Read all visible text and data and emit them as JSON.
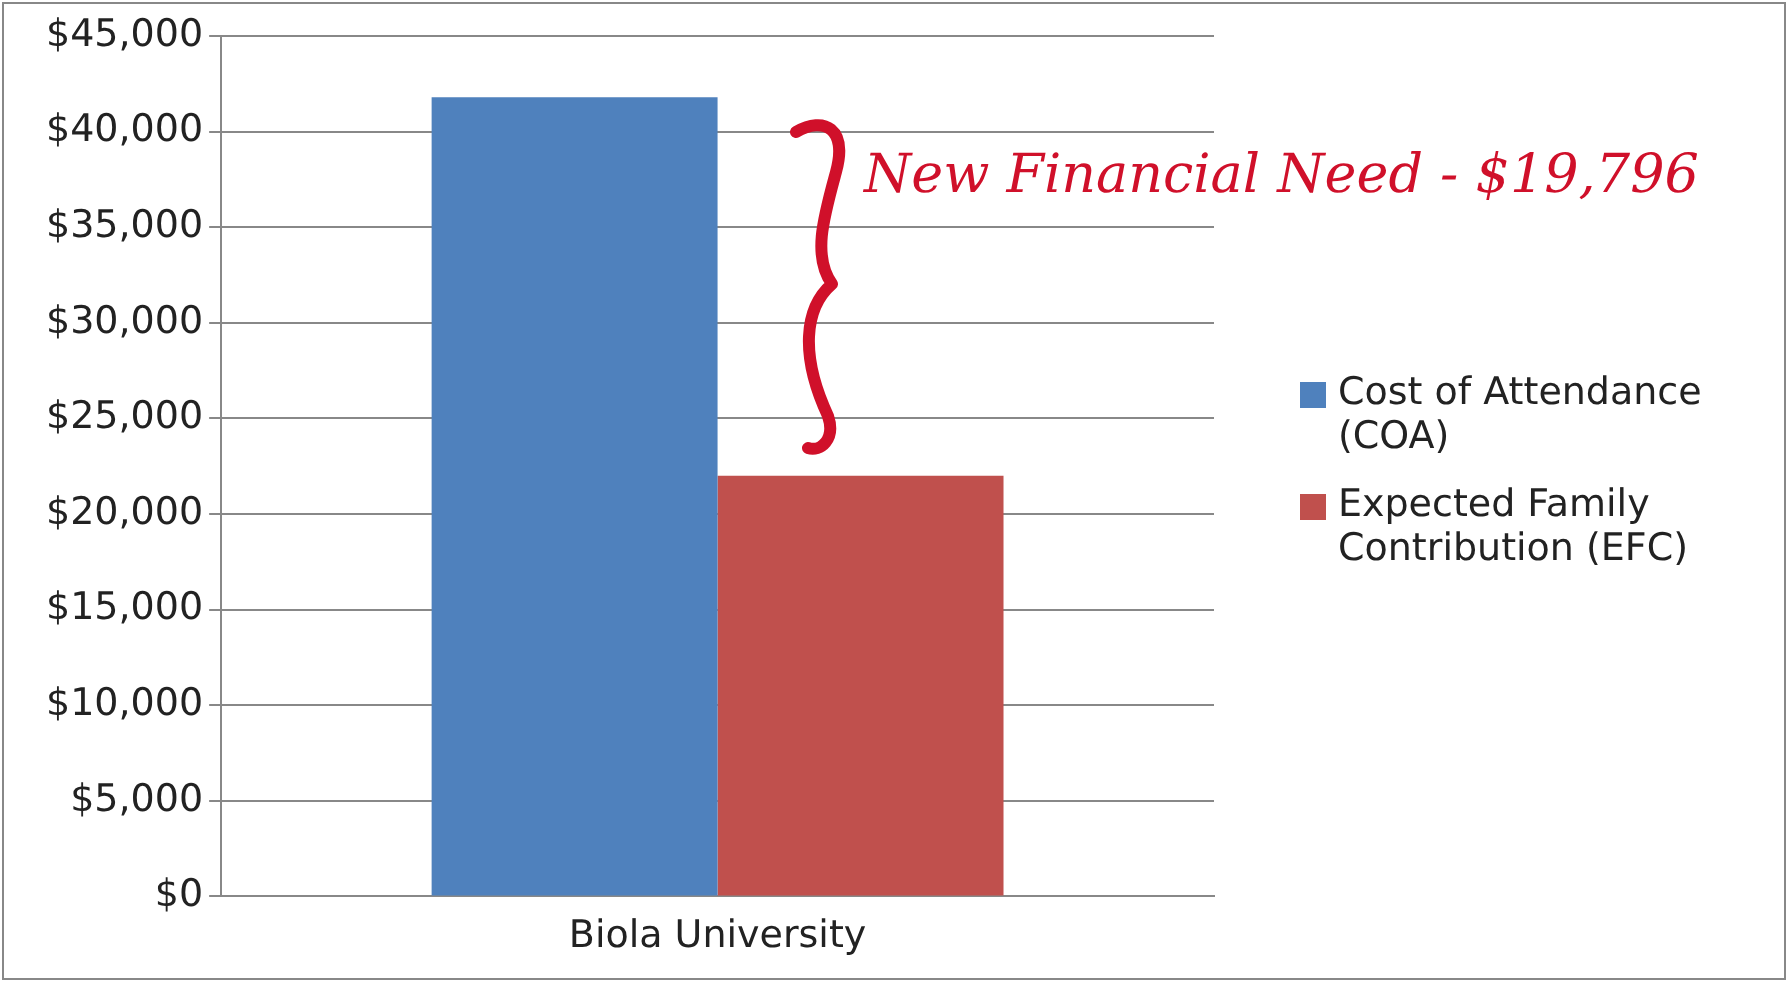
{
  "chart_data": {
    "type": "bar",
    "categories": [
      "Biola University"
    ],
    "series": [
      {
        "name": "Cost of Attendance (COA)",
        "color": "#4f81bd",
        "values": [
          41800
        ]
      },
      {
        "name": "Expected Family Contribution (EFC)",
        "color": "#c0504d",
        "values": [
          22000
        ]
      }
    ],
    "ylim": [
      0,
      45000
    ],
    "yticks": [
      {
        "value": 0,
        "label": "$0"
      },
      {
        "value": 5000,
        "label": "$5,000"
      },
      {
        "value": 10000,
        "label": "$10,000"
      },
      {
        "value": 15000,
        "label": "$15,000"
      },
      {
        "value": 20000,
        "label": "$20,000"
      },
      {
        "value": 25000,
        "label": "$25,000"
      },
      {
        "value": 30000,
        "label": "$30,000"
      },
      {
        "value": 35000,
        "label": "$35,000"
      },
      {
        "value": 40000,
        "label": "$40,000"
      },
      {
        "value": 45000,
        "label": "$45,000"
      }
    ],
    "grid": "y",
    "legend": "right",
    "annotations": [
      "New Financial Need - $19,796"
    ]
  }
}
